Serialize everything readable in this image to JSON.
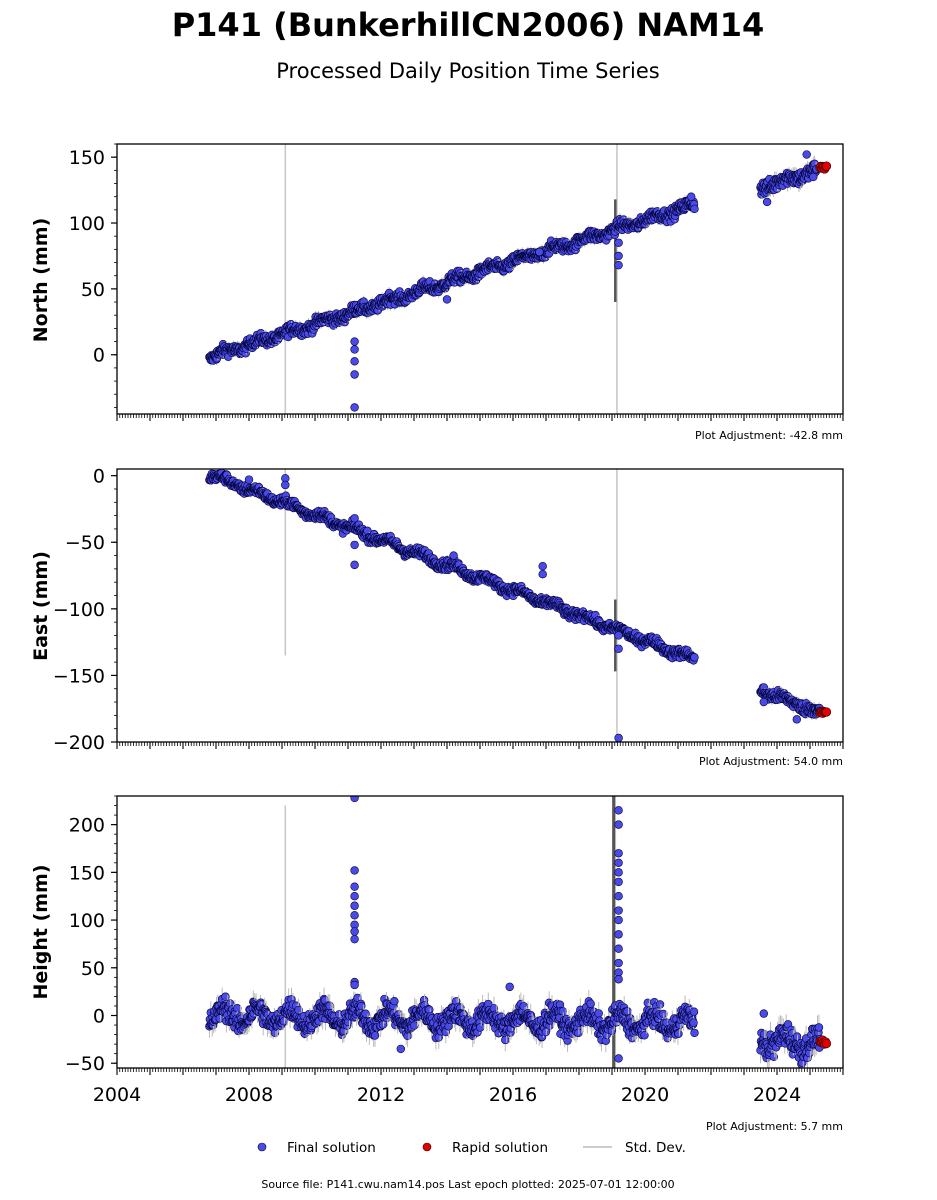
{
  "title": "P141 (BunkerhillCN2006) NAM14",
  "subtitle": "Processed Daily Position Time Series",
  "footer": "Source file: P141.cwu.nam14.pos  Last epoch plotted: 2025-07-01 12:00:00",
  "legend": {
    "final": "Final solution",
    "rapid": "Rapid solution",
    "std": "Std. Dev."
  },
  "colors": {
    "final": "#4a4ae8",
    "rapid": "#e30000",
    "std": "#bbbbbb",
    "edge": "#000033"
  },
  "chart_data": [
    {
      "type": "scatter",
      "ylabel": "North (mm)",
      "adjustment": "Plot Adjustment: -42.8 mm",
      "xlim": [
        2004,
        2026
      ],
      "ylim": [
        -45,
        160
      ],
      "yticks": [
        "150",
        "100",
        "50",
        "0"
      ],
      "xticks": [
        "2004",
        "2008",
        "2012",
        "2016",
        "2020",
        "2024"
      ],
      "segments": [
        {
          "x0": 2006.8,
          "x1": 2021.5,
          "y0": -2,
          "y1": 114,
          "noise": 3,
          "cycle": 2
        },
        {
          "x0": 2023.5,
          "x1": 2025.2,
          "y0": 127,
          "y1": 140,
          "noise": 4,
          "cycle": 2
        }
      ],
      "outliers": [
        {
          "x": 2011.2,
          "y": 10
        },
        {
          "x": 2011.2,
          "y": 4
        },
        {
          "x": 2011.2,
          "y": -5
        },
        {
          "x": 2011.2,
          "y": -15
        },
        {
          "x": 2011.2,
          "y": -40
        },
        {
          "x": 2019.2,
          "y": 85
        },
        {
          "x": 2019.2,
          "y": 75
        },
        {
          "x": 2019.2,
          "y": 68
        },
        {
          "x": 2014.0,
          "y": 42
        },
        {
          "x": 2016.8,
          "y": 78
        },
        {
          "x": 2023.7,
          "y": 116
        },
        {
          "x": 2024.9,
          "y": 152
        },
        {
          "x": 2025.1,
          "y": 135
        },
        {
          "x": 2021.4,
          "y": 120
        }
      ],
      "rapid": {
        "x0": 2025.3,
        "x1": 2025.5,
        "y": 142
      },
      "vlines": [
        {
          "x": 2009.1,
          "y0": -45,
          "y1": 160
        },
        {
          "x": 2019.15,
          "y0": -45,
          "y1": 160
        }
      ]
    },
    {
      "type": "scatter",
      "ylabel": "East (mm)",
      "adjustment": "Plot Adjustment: 54.0 mm",
      "xlim": [
        2004,
        2026
      ],
      "ylim": [
        -200,
        5
      ],
      "yticks": [
        "0",
        "−50",
        "−100",
        "−150",
        "−200"
      ],
      "xticks": [
        "2004",
        "2008",
        "2012",
        "2016",
        "2020",
        "2024"
      ],
      "segments": [
        {
          "x0": 2006.8,
          "x1": 2021.5,
          "y0": 1,
          "y1": -138,
          "noise": 2.5,
          "cycle": 2
        },
        {
          "x0": 2023.5,
          "x1": 2025.3,
          "y0": -161,
          "y1": -178,
          "noise": 3,
          "cycle": 1.5
        }
      ],
      "outliers": [
        {
          "x": 2009.1,
          "y": -2
        },
        {
          "x": 2009.1,
          "y": -7
        },
        {
          "x": 2008.0,
          "y": -3
        },
        {
          "x": 2011.2,
          "y": -32
        },
        {
          "x": 2011.2,
          "y": -52
        },
        {
          "x": 2011.2,
          "y": -67
        },
        {
          "x": 2019.2,
          "y": -120
        },
        {
          "x": 2019.2,
          "y": -130
        },
        {
          "x": 2019.2,
          "y": -197
        },
        {
          "x": 2016.9,
          "y": -68
        },
        {
          "x": 2016.9,
          "y": -74
        },
        {
          "x": 2014.2,
          "y": -60
        },
        {
          "x": 2023.6,
          "y": -170
        },
        {
          "x": 2024.6,
          "y": -183
        }
      ],
      "rapid": {
        "x0": 2025.3,
        "x1": 2025.5,
        "y": -178
      },
      "vlines": [
        {
          "x": 2009.1,
          "y0": -135,
          "y1": 5
        },
        {
          "x": 2019.15,
          "y0": -200,
          "y1": 5
        }
      ]
    },
    {
      "type": "scatter",
      "ylabel": "Height (mm)",
      "adjustment": "Plot Adjustment: 5.7 mm",
      "xlim": [
        2004,
        2026
      ],
      "ylim": [
        -55,
        230
      ],
      "yticks": [
        "200",
        "150",
        "100",
        "50",
        "0",
        "−50"
      ],
      "xticks": [
        "2004",
        "2008",
        "2012",
        "2016",
        "2020",
        "2024"
      ],
      "segments": [
        {
          "x0": 2006.8,
          "x1": 2021.5,
          "y0": 0,
          "y1": -8,
          "noise": 8,
          "cycle": 9
        },
        {
          "x0": 2023.5,
          "x1": 2025.3,
          "y0": -25,
          "y1": -30,
          "noise": 9,
          "cycle": 8
        }
      ],
      "outliers": [
        {
          "x": 2011.2,
          "y": 228
        },
        {
          "x": 2011.2,
          "y": 152
        },
        {
          "x": 2011.2,
          "y": 135
        },
        {
          "x": 2011.2,
          "y": 125
        },
        {
          "x": 2011.2,
          "y": 115
        },
        {
          "x": 2011.2,
          "y": 105
        },
        {
          "x": 2011.2,
          "y": 95
        },
        {
          "x": 2011.2,
          "y": 88
        },
        {
          "x": 2011.2,
          "y": 80
        },
        {
          "x": 2011.2,
          "y": 35
        },
        {
          "x": 2011.2,
          "y": 32
        },
        {
          "x": 2019.2,
          "y": 215
        },
        {
          "x": 2019.2,
          "y": 200
        },
        {
          "x": 2019.2,
          "y": 170
        },
        {
          "x": 2019.2,
          "y": 160
        },
        {
          "x": 2019.2,
          "y": 150
        },
        {
          "x": 2019.2,
          "y": 140
        },
        {
          "x": 2019.2,
          "y": 125
        },
        {
          "x": 2019.2,
          "y": 110
        },
        {
          "x": 2019.2,
          "y": 100
        },
        {
          "x": 2019.2,
          "y": 85
        },
        {
          "x": 2019.2,
          "y": 70
        },
        {
          "x": 2019.2,
          "y": 55
        },
        {
          "x": 2019.2,
          "y": 45
        },
        {
          "x": 2019.2,
          "y": 38
        },
        {
          "x": 2019.2,
          "y": -45
        },
        {
          "x": 2015.9,
          "y": 30
        },
        {
          "x": 2012.6,
          "y": -35
        },
        {
          "x": 2023.6,
          "y": 2
        }
      ],
      "rapid": {
        "x0": 2025.3,
        "x1": 2025.5,
        "y": -28
      },
      "vlines": [
        {
          "x": 2009.1,
          "y0": -55,
          "y1": 220
        },
        {
          "x": 2019.1,
          "y0": -55,
          "y1": 230
        }
      ]
    }
  ]
}
